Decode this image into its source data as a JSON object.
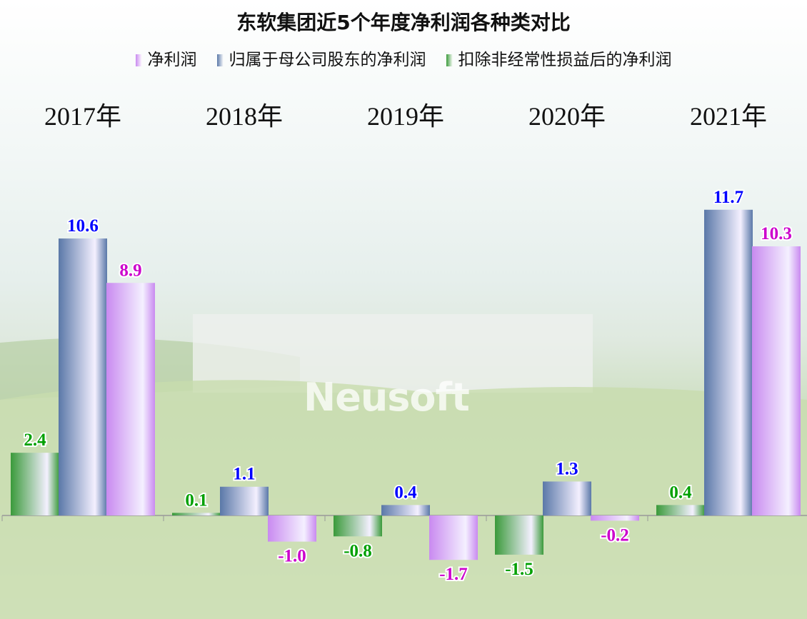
{
  "chart_data": {
    "type": "bar",
    "title": "东软集团近5个年度净利润各种类对比",
    "categories": [
      "2017年",
      "2018年",
      "2019年",
      "2020年",
      "2021年"
    ],
    "series": [
      {
        "name": "扣除非经常性损益后的净利润",
        "color": "#3a9a3a",
        "label_color": "#00a000",
        "values": [
          2.4,
          0.1,
          -0.8,
          -1.5,
          0.4
        ]
      },
      {
        "name": "归属于母公司股东的净利润",
        "color": "#5a78a8",
        "label_color": "#0000ff",
        "values": [
          10.6,
          1.1,
          0.4,
          1.3,
          11.7
        ]
      },
      {
        "name": "净利润",
        "color": "#c98af0",
        "label_color": "#cc00cc",
        "values": [
          8.9,
          -1.0,
          -1.7,
          -0.2,
          10.3
        ]
      }
    ],
    "legend_order": [
      2,
      1,
      0
    ],
    "legend_position": "top",
    "grid": false
  },
  "watermark": "Neusoft"
}
